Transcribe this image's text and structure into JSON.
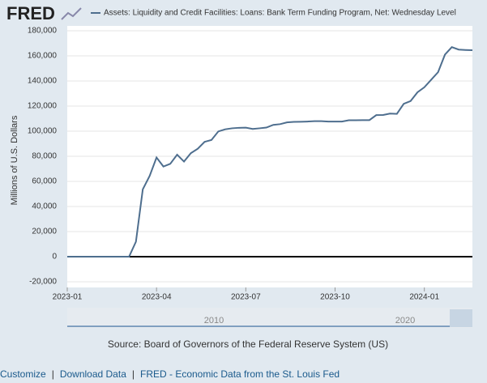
{
  "logo": "FRED",
  "source": "Source: Board of Governors of the Federal Reserve System (US)",
  "navigator_labels": [
    "2010",
    "2020"
  ],
  "footer_links": [
    "Customize",
    "Download Data",
    "FRED - Economic Data from the St. Louis Fed"
  ],
  "chart_data": {
    "type": "line",
    "y_label": "Millions of U.S. Dollars",
    "categories": [
      "2023-01",
      null,
      null,
      null,
      null,
      null,
      null,
      null,
      null,
      null,
      null,
      null,
      null,
      "2023-04",
      null,
      null,
      null,
      null,
      null,
      null,
      null,
      null,
      null,
      null,
      null,
      null,
      "2023-07",
      null,
      null,
      null,
      null,
      null,
      null,
      null,
      null,
      null,
      null,
      null,
      null,
      "2023-10",
      null,
      null,
      null,
      null,
      null,
      null,
      null,
      null,
      null,
      null,
      null,
      null,
      "2024-01",
      null,
      null,
      null,
      null,
      null,
      null,
      null
    ],
    "series": [
      {
        "name": "Assets: Liquidity and Credit Facilities: Loans: Bank Term Funding Program, Net: Wednesday Level",
        "color": "#4e6e8e",
        "values": [
          0,
          0,
          0,
          0,
          0,
          0,
          0,
          0,
          0,
          0,
          11943,
          53669,
          64403,
          79021,
          71840,
          73980,
          81258,
          75779,
          82500,
          86000,
          91500,
          93000,
          99800,
          101500,
          102300,
          102700,
          102800,
          101800,
          102300,
          102900,
          105000,
          105600,
          107000,
          107400,
          107500,
          107700,
          108000,
          108000,
          107700,
          107700,
          107700,
          108700,
          108700,
          108800,
          108800,
          112800,
          112900,
          114000,
          113800,
          121800,
          124000,
          131000,
          135000,
          141000,
          147000,
          161000,
          167000,
          165000,
          164700,
          164500
        ]
      }
    ],
    "ylim": [
      -20000,
      180000
    ],
    "yticks": [
      {
        "value": -20000,
        "label": "-20,000"
      },
      0,
      {
        "value": 20000,
        "label": "20,000"
      },
      {
        "value": 40000,
        "label": "40,000"
      },
      {
        "value": 60000,
        "label": "60,000"
      },
      {
        "value": 80000,
        "label": "80,000"
      },
      {
        "value": 100000,
        "label": "100,000"
      },
      {
        "value": 120000,
        "label": "120,000"
      },
      {
        "value": 140000,
        "label": "140,000"
      },
      {
        "value": 160000,
        "label": "160,000"
      },
      {
        "value": 180000,
        "label": "180,000"
      }
    ],
    "grid": true
  }
}
